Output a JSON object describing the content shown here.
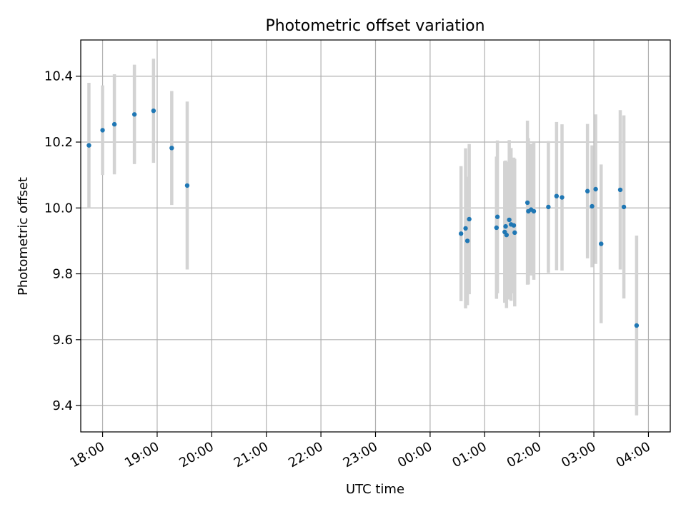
{
  "chart_data": {
    "type": "scatter",
    "title": "Photometric offset variation",
    "xlabel": "UTC time",
    "ylabel": "Photometric offset",
    "x_unit": "UTC time (HH:MM), points span 17:45 through 03:47 the next day",
    "xlim": [
      "17:36",
      "04:24"
    ],
    "ylim": [
      9.32,
      10.51
    ],
    "x_ticks": [
      "18:00",
      "19:00",
      "20:00",
      "21:00",
      "22:00",
      "23:00",
      "00:00",
      "01:00",
      "02:00",
      "03:00",
      "04:00"
    ],
    "y_ticks": [
      "9.4",
      "9.6",
      "9.8",
      "10.0",
      "10.2",
      "10.4"
    ],
    "grid": true,
    "legend": "none",
    "series": [
      {
        "marker_color": "#1f77b4",
        "errorbar_color": "#d3d3d3",
        "points": [
          {
            "x": "17:45",
            "y": 10.19,
            "yerr": 0.19
          },
          {
            "x": "18:00",
            "y": 10.236,
            "yerr": 0.136
          },
          {
            "x": "18:13",
            "y": 10.254,
            "yerr": 0.152
          },
          {
            "x": "18:35",
            "y": 10.284,
            "yerr": 0.151
          },
          {
            "x": "18:56",
            "y": 10.295,
            "yerr": 0.158
          },
          {
            "x": "19:16",
            "y": 10.182,
            "yerr": 0.173
          },
          {
            "x": "19:33",
            "y": 10.068,
            "yerr": 0.255
          },
          {
            "x": "00:34",
            "y": 9.922,
            "yerr": 0.205
          },
          {
            "x": "00:39",
            "y": 9.938,
            "yerr": 0.243
          },
          {
            "x": "00:41",
            "y": 9.9,
            "yerr": 0.195
          },
          {
            "x": "00:43",
            "y": 9.966,
            "yerr": 0.228
          },
          {
            "x": "01:13",
            "y": 9.94,
            "yerr": 0.216
          },
          {
            "x": "01:14",
            "y": 9.973,
            "yerr": 0.232
          },
          {
            "x": "01:22",
            "y": 9.927,
            "yerr": 0.215
          },
          {
            "x": "01:23",
            "y": 9.944,
            "yerr": 0.2
          },
          {
            "x": "01:24",
            "y": 9.918,
            "yerr": 0.222
          },
          {
            "x": "01:27",
            "y": 9.964,
            "yerr": 0.242
          },
          {
            "x": "01:29",
            "y": 9.95,
            "yerr": 0.232
          },
          {
            "x": "01:32",
            "y": 9.947,
            "yerr": 0.206
          },
          {
            "x": "01:33",
            "y": 9.925,
            "yerr": 0.224
          },
          {
            "x": "01:47",
            "y": 10.016,
            "yerr": 0.249
          },
          {
            "x": "01:48",
            "y": 9.99,
            "yerr": 0.222
          },
          {
            "x": "01:51",
            "y": 9.995,
            "yerr": 0.2
          },
          {
            "x": "01:54",
            "y": 9.99,
            "yerr": 0.208
          },
          {
            "x": "02:10",
            "y": 10.003,
            "yerr": 0.2
          },
          {
            "x": "02:19",
            "y": 10.036,
            "yerr": 0.225
          },
          {
            "x": "02:25",
            "y": 10.032,
            "yerr": 0.222
          },
          {
            "x": "02:53",
            "y": 10.051,
            "yerr": 0.204
          },
          {
            "x": "02:58",
            "y": 10.005,
            "yerr": 0.185
          },
          {
            "x": "03:02",
            "y": 10.057,
            "yerr": 0.227
          },
          {
            "x": "03:08",
            "y": 9.891,
            "yerr": 0.241
          },
          {
            "x": "03:29",
            "y": 10.055,
            "yerr": 0.242
          },
          {
            "x": "03:33",
            "y": 10.003,
            "yerr": 0.278
          },
          {
            "x": "03:47",
            "y": 9.643,
            "yerr": 0.273
          }
        ]
      }
    ]
  }
}
